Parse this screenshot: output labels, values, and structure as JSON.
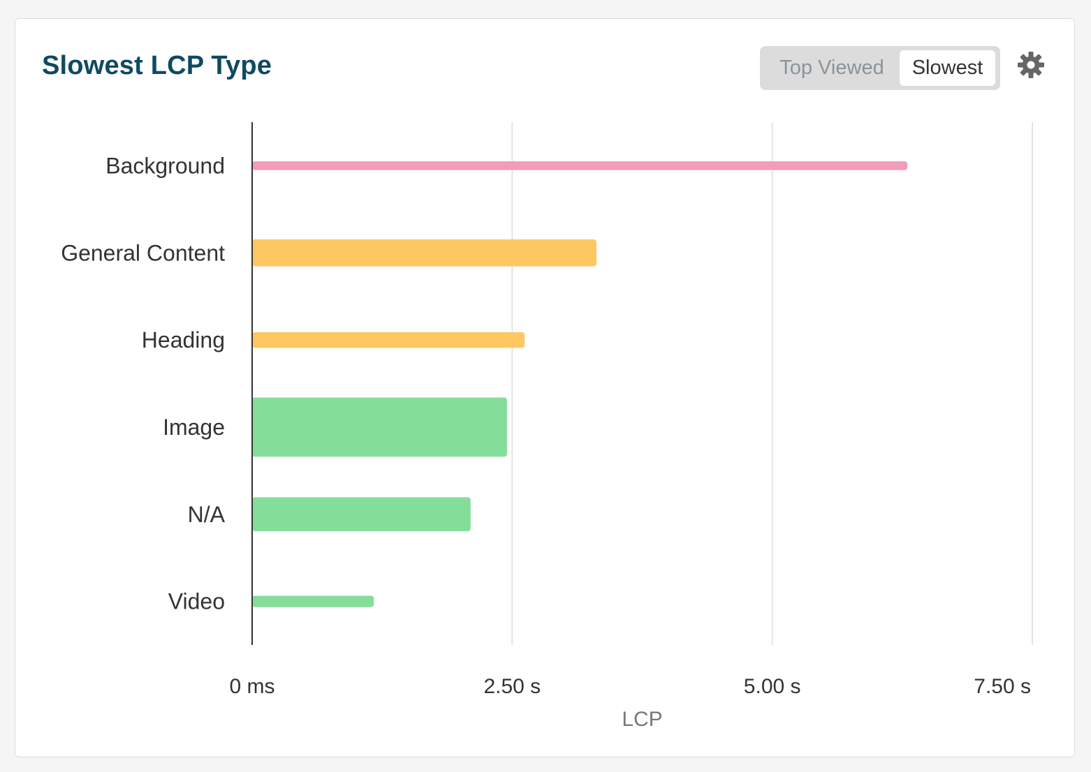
{
  "card": {
    "title": "Slowest LCP Type",
    "toggle": {
      "options": [
        "Top Viewed",
        "Slowest"
      ],
      "selected": "Slowest"
    },
    "settings_icon": "gear-icon"
  },
  "colors": {
    "title": "#0e4a62",
    "poor": "#f29cb7",
    "needs_improvement": "#fdc862",
    "good": "#84de9a",
    "grid": "#e3e3e3",
    "axis": "#333333"
  },
  "chart_data": {
    "type": "bar",
    "orientation": "horizontal",
    "title": "Slowest LCP Type",
    "xlabel": "LCP",
    "ylabel": "",
    "categories": [
      "Background",
      "General Content",
      "Heading",
      "Image",
      "N/A",
      "Video"
    ],
    "values": [
      6.3,
      3.31,
      2.62,
      2.45,
      2.1,
      1.17
    ],
    "value_unit": "s",
    "relative_bar_thickness": [
      0.1,
      0.31,
      0.18,
      0.68,
      0.39,
      0.13
    ],
    "bar_colors": [
      "#f29cb7",
      "#fdc862",
      "#fdc862",
      "#84de9a",
      "#84de9a",
      "#84de9a"
    ],
    "xlim": [
      0,
      7.5
    ],
    "xticks": [
      0,
      2.5,
      5.0,
      7.5
    ],
    "xtick_labels": [
      "0 ms",
      "2.50 s",
      "5.00 s",
      "7.50 s"
    ],
    "grid": true,
    "legend": "none"
  }
}
